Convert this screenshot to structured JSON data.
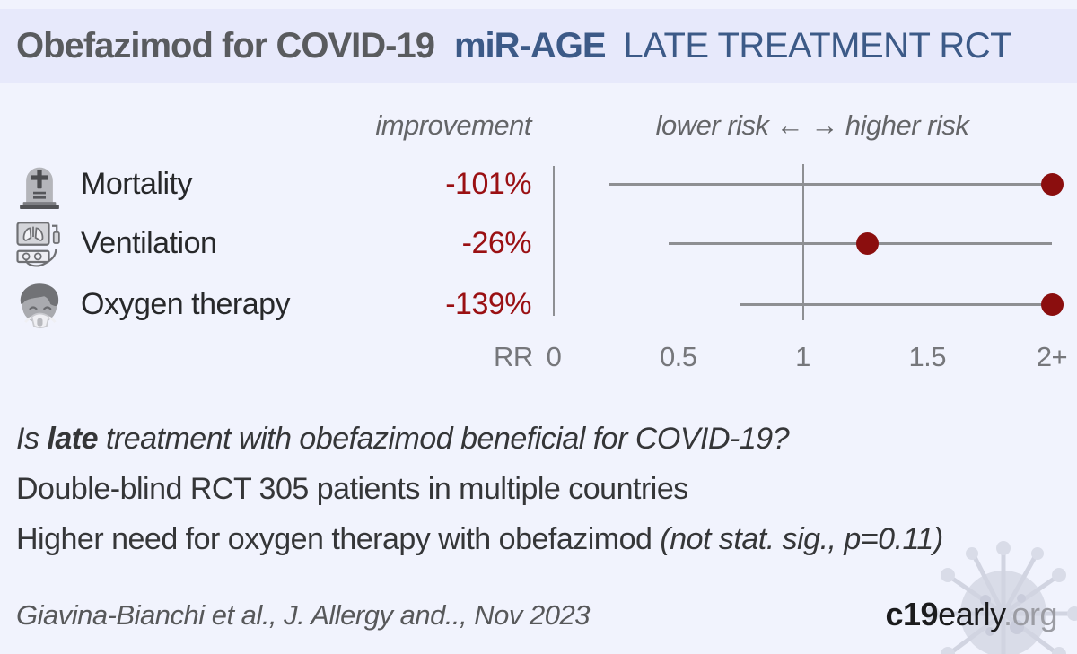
{
  "header": {
    "title": "Obefazimod for COVID-19",
    "trial_name": "miR-AGE",
    "trial_type": "LATE TREATMENT RCT"
  },
  "chart_data": {
    "type": "scatter",
    "subtype": "forest-plot",
    "title": "Obefazimod for COVID-19 miR-AGE LATE TREATMENT RCT outcomes",
    "column_headers": {
      "improvement": "improvement",
      "risk_direction": "lower risk ←  → higher risk"
    },
    "axis": {
      "label": "RR",
      "min": 0,
      "max": 2.05,
      "reference_line": 1,
      "ticks": [
        {
          "value": 0,
          "label": "0"
        },
        {
          "value": 0.5,
          "label": "0.5"
        },
        {
          "value": 1,
          "label": "1"
        },
        {
          "value": 1.5,
          "label": "1.5"
        },
        {
          "value": 2,
          "label": "2+"
        }
      ]
    },
    "outcomes": [
      {
        "label": "Mortality",
        "icon": "tombstone-icon",
        "improvement": "-101%",
        "rr": 2.01,
        "ci_low": 0.22,
        "ci_line_end": 2.0,
        "dot": 2.0,
        "dot_clipped": true
      },
      {
        "label": "Ventilation",
        "icon": "ventilator-icon",
        "improvement": "-26%",
        "rr": 1.26,
        "ci_low": 0.46,
        "ci_line_end": 2.0,
        "dot": 1.26,
        "dot_clipped": false
      },
      {
        "label": "Oxygen therapy",
        "icon": "oxygen-mask-icon",
        "improvement": "-139%",
        "rr": 2.39,
        "ci_low": 0.75,
        "ci_line_end": 2.05,
        "dot": 2.0,
        "dot_clipped": true
      }
    ],
    "colors": {
      "point": "#8b0e0e",
      "line": "#8e8f93",
      "improvement_text": "#9a1013",
      "header_blue": "#3c5a87"
    },
    "legend_position": "none",
    "grid": false
  },
  "summary": {
    "question_prefix": "Is ",
    "question_bold": "late",
    "question_rest": " treatment with obefazimod beneficial for COVID-19?",
    "line2": "Double-blind RCT 305 patients in multiple countries",
    "line3_main": "Higher need for oxygen therapy with obefazimod ",
    "line3_italic": "(not stat. sig., p=0.11)"
  },
  "footer": {
    "citation": "Giavina-Bianchi et al., J. Allergy and.., Nov 2023",
    "site_bold": "c19",
    "site_regular": "early",
    "site_domain": ".org"
  }
}
